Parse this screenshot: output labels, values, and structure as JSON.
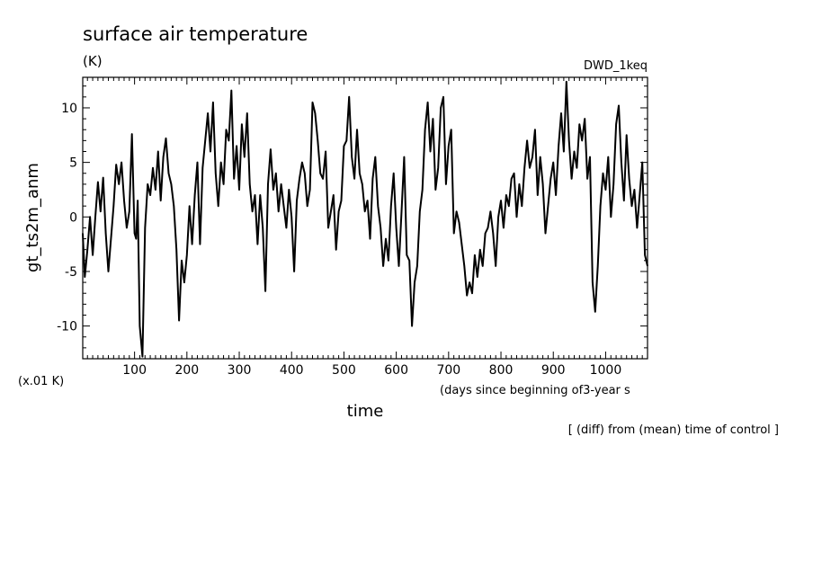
{
  "chart_data": {
    "type": "line",
    "title": "surface air temperature",
    "unit_label": "(K)",
    "run_label": "DWD_1keq",
    "ylabel": "gt_ts2m_anm",
    "scale_note": "(x.01 K)",
    "xlabel": "time",
    "xlabel_units": "(days since beginning of3-year s",
    "footnote": "[ (diff) from (mean) time of control ]",
    "xlim": [
      1,
      1080
    ],
    "ylim": [
      -13,
      12.8
    ],
    "x_ticks": [
      100,
      200,
      300,
      400,
      500,
      600,
      700,
      800,
      900,
      1000
    ],
    "y_ticks": [
      10,
      5,
      0,
      -5,
      -10
    ],
    "grid": false,
    "series": [
      {
        "x": [
          1,
          5,
          10,
          15,
          20,
          25,
          30,
          35,
          40,
          45,
          50,
          55,
          60,
          65,
          70,
          75,
          80,
          85,
          90,
          95,
          100,
          103,
          106,
          110,
          115,
          120,
          125,
          130,
          135,
          140,
          145,
          150,
          155,
          160,
          165,
          170,
          175,
          180,
          185,
          190,
          195,
          200,
          205,
          210,
          215,
          220,
          225,
          230,
          235,
          240,
          245,
          250,
          255,
          260,
          265,
          270,
          275,
          280,
          285,
          290,
          295,
          300,
          305,
          310,
          315,
          320,
          325,
          330,
          335,
          340,
          345,
          350,
          355,
          360,
          365,
          370,
          375,
          380,
          385,
          390,
          395,
          400,
          405,
          410,
          415,
          420,
          425,
          430,
          435,
          440,
          445,
          450,
          455,
          460,
          465,
          470,
          475,
          480,
          485,
          490,
          495,
          500,
          505,
          510,
          515,
          520,
          525,
          530,
          535,
          540,
          545,
          550,
          555,
          560,
          565,
          570,
          575,
          580,
          585,
          590,
          595,
          600,
          605,
          610,
          615,
          620,
          625,
          630,
          635,
          640,
          645,
          650,
          655,
          660,
          665,
          670,
          675,
          680,
          685,
          690,
          695,
          700,
          705,
          710,
          715,
          720,
          725,
          730,
          735,
          740,
          745,
          750,
          755,
          760,
          765,
          770,
          775,
          780,
          785,
          790,
          795,
          800,
          805,
          810,
          815,
          820,
          825,
          830,
          835,
          840,
          845,
          850,
          855,
          860,
          865,
          870,
          875,
          880,
          885,
          890,
          895,
          900,
          905,
          910,
          915,
          920,
          925,
          930,
          935,
          940,
          945,
          950,
          955,
          960,
          965,
          970,
          975,
          980,
          985,
          990,
          995,
          1000,
          1005,
          1010,
          1015,
          1020,
          1025,
          1030,
          1035,
          1040,
          1045,
          1050,
          1055,
          1060,
          1065,
          1070,
          1075,
          1080
        ],
        "y": [
          -1.5,
          -5.5,
          -3,
          0,
          -3.5,
          0,
          3.2,
          0.5,
          3.6,
          -1.5,
          -5,
          -2,
          1,
          4.8,
          3,
          5,
          1.5,
          -1,
          0.5,
          7.6,
          -1.5,
          -2,
          1.5,
          -10,
          -12.8,
          -1,
          3,
          2,
          4.5,
          2.5,
          6,
          1.5,
          5.5,
          7.2,
          4,
          3,
          1,
          -3,
          -9.5,
          -4,
          -6,
          -3.5,
          1,
          -2.5,
          2,
          5,
          -2.5,
          4.5,
          7,
          9.5,
          6,
          10.5,
          4,
          1,
          5,
          3,
          8,
          7,
          11.6,
          3.5,
          6.5,
          2.5,
          8.5,
          5.5,
          9.5,
          3,
          0.5,
          2,
          -2.5,
          2,
          -1,
          -6.8,
          3,
          6.2,
          2.5,
          4,
          0.5,
          3,
          1,
          -1,
          2.5,
          0,
          -5,
          1.5,
          3.5,
          5,
          4,
          1,
          2.5,
          10.5,
          9.5,
          7,
          4,
          3.5,
          6,
          -1,
          0.5,
          2,
          -3,
          0.5,
          1.5,
          6.5,
          7,
          11,
          5.5,
          3.5,
          8,
          4,
          3,
          0.5,
          1.5,
          -2,
          3.5,
          5.5,
          1,
          -1,
          -4.5,
          -2,
          -4,
          1,
          4,
          -1,
          -4.5,
          0.5,
          5.5,
          -3.5,
          -4,
          -10,
          -6,
          -4.5,
          0.5,
          2.5,
          8,
          10.5,
          6,
          9,
          2.5,
          4.5,
          10,
          11,
          3,
          6.5,
          8,
          -1.5,
          0.5,
          -0.5,
          -2.5,
          -4.5,
          -7.2,
          -6,
          -7,
          -3.5,
          -5.5,
          -3,
          -4.5,
          -1.5,
          -1,
          0.5,
          -1.5,
          -4.5,
          0,
          1.5,
          -1,
          2,
          1,
          3.5,
          4,
          0,
          3,
          1,
          4.5,
          7,
          4.5,
          5.5,
          8,
          2,
          5.5,
          3,
          -1.5,
          1,
          3.5,
          5,
          2,
          6.5,
          9.5,
          6,
          12.4,
          7,
          3.5,
          6,
          4.5,
          8.5,
          7,
          9,
          3.5,
          5.5,
          -6,
          -8.7,
          -4.5,
          1,
          4,
          2.5,
          5.5,
          0,
          3,
          8.5,
          10.2,
          5,
          1.5,
          7.5,
          3.5,
          1,
          2.5,
          -1,
          2,
          5,
          -3.5,
          -4.5
        ],
        "color": "#000000"
      }
    ]
  }
}
